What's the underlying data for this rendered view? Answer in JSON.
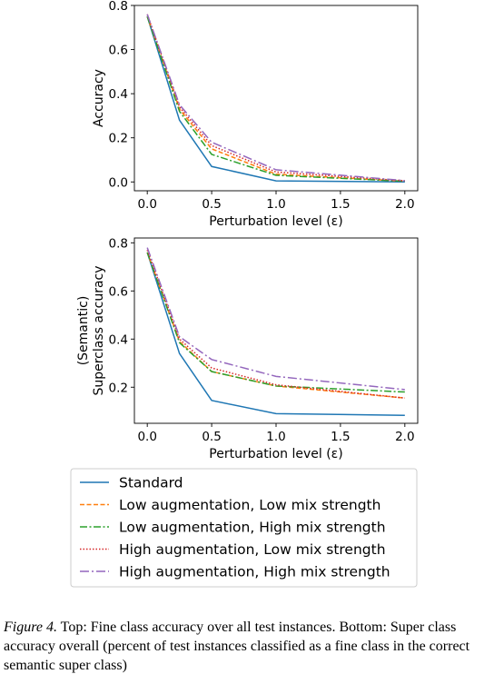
{
  "chart_data": [
    {
      "type": "line",
      "title": "",
      "xlabel": "Perturbation level (ε)",
      "ylabel": [
        "Accuracy"
      ],
      "xlim": [
        -0.1,
        2.1
      ],
      "ylim": [
        -0.04,
        0.8
      ],
      "xticks": [
        "0.0",
        "0.5",
        "1.0",
        "1.5",
        "2.0"
      ],
      "yticks": [
        "0.0",
        "0.2",
        "0.4",
        "0.6",
        "0.8"
      ],
      "grid": false,
      "x": [
        0.0,
        0.25,
        0.5,
        1.0,
        2.0
      ],
      "series": [
        {
          "name": "Standard",
          "values": [
            0.75,
            0.28,
            0.07,
            0.005,
            0.0
          ]
        },
        {
          "name": "Low augmentation, Low mix strength",
          "values": [
            0.75,
            0.33,
            0.15,
            0.035,
            0.003
          ]
        },
        {
          "name": "Low augmentation, High mix strength",
          "values": [
            0.75,
            0.32,
            0.125,
            0.03,
            0.003
          ]
        },
        {
          "name": "High augmentation, Low mix strength",
          "values": [
            0.76,
            0.34,
            0.165,
            0.045,
            0.005
          ]
        },
        {
          "name": "High augmentation, High mix strength",
          "values": [
            0.76,
            0.35,
            0.18,
            0.055,
            0.006
          ]
        }
      ]
    },
    {
      "type": "line",
      "title": "",
      "xlabel": "Perturbation level (ε)",
      "ylabel": [
        "(Semantic)",
        "Superclass accuracy"
      ],
      "xlim": [
        -0.1,
        2.1
      ],
      "ylim": [
        0.05,
        0.82
      ],
      "xticks": [
        "0.0",
        "0.5",
        "1.0",
        "1.5",
        "2.0"
      ],
      "yticks": [
        "0.2",
        "0.4",
        "0.6",
        "0.8"
      ],
      "grid": false,
      "x": [
        0.0,
        0.25,
        0.5,
        1.0,
        2.0
      ],
      "series": [
        {
          "name": "Standard",
          "values": [
            0.76,
            0.34,
            0.145,
            0.09,
            0.083
          ]
        },
        {
          "name": "Low augmentation, Low mix strength",
          "values": [
            0.76,
            0.39,
            0.265,
            0.205,
            0.155
          ]
        },
        {
          "name": "Low augmentation, High mix strength",
          "values": [
            0.76,
            0.385,
            0.265,
            0.205,
            0.18
          ]
        },
        {
          "name": "High augmentation, Low mix strength",
          "values": [
            0.77,
            0.4,
            0.28,
            0.21,
            0.155
          ]
        },
        {
          "name": "High augmentation, High mix strength",
          "values": [
            0.78,
            0.41,
            0.315,
            0.245,
            0.19
          ]
        }
      ]
    }
  ],
  "legend": {
    "placement": "below",
    "entries": [
      {
        "label": "Standard",
        "color": "#1f77b4",
        "dash": "solid"
      },
      {
        "label": "Low augmentation, Low mix strength",
        "color": "#ff7f0e",
        "dash": "dashed"
      },
      {
        "label": "Low augmentation, High mix strength",
        "color": "#2ca02c",
        "dash": "dashdot"
      },
      {
        "label": "High augmentation, Low mix strength",
        "color": "#d62728",
        "dash": "dotted"
      },
      {
        "label": "High augmentation, High mix strength",
        "color": "#9467bd",
        "dash": "dashdot-long"
      }
    ]
  },
  "caption": {
    "lead": "Figure 4.",
    "text": " Top: Fine class accuracy over all test instances. Bottom: Super class accuracy overall (percent of test instances classified as a fine class in the correct semantic super class)"
  }
}
